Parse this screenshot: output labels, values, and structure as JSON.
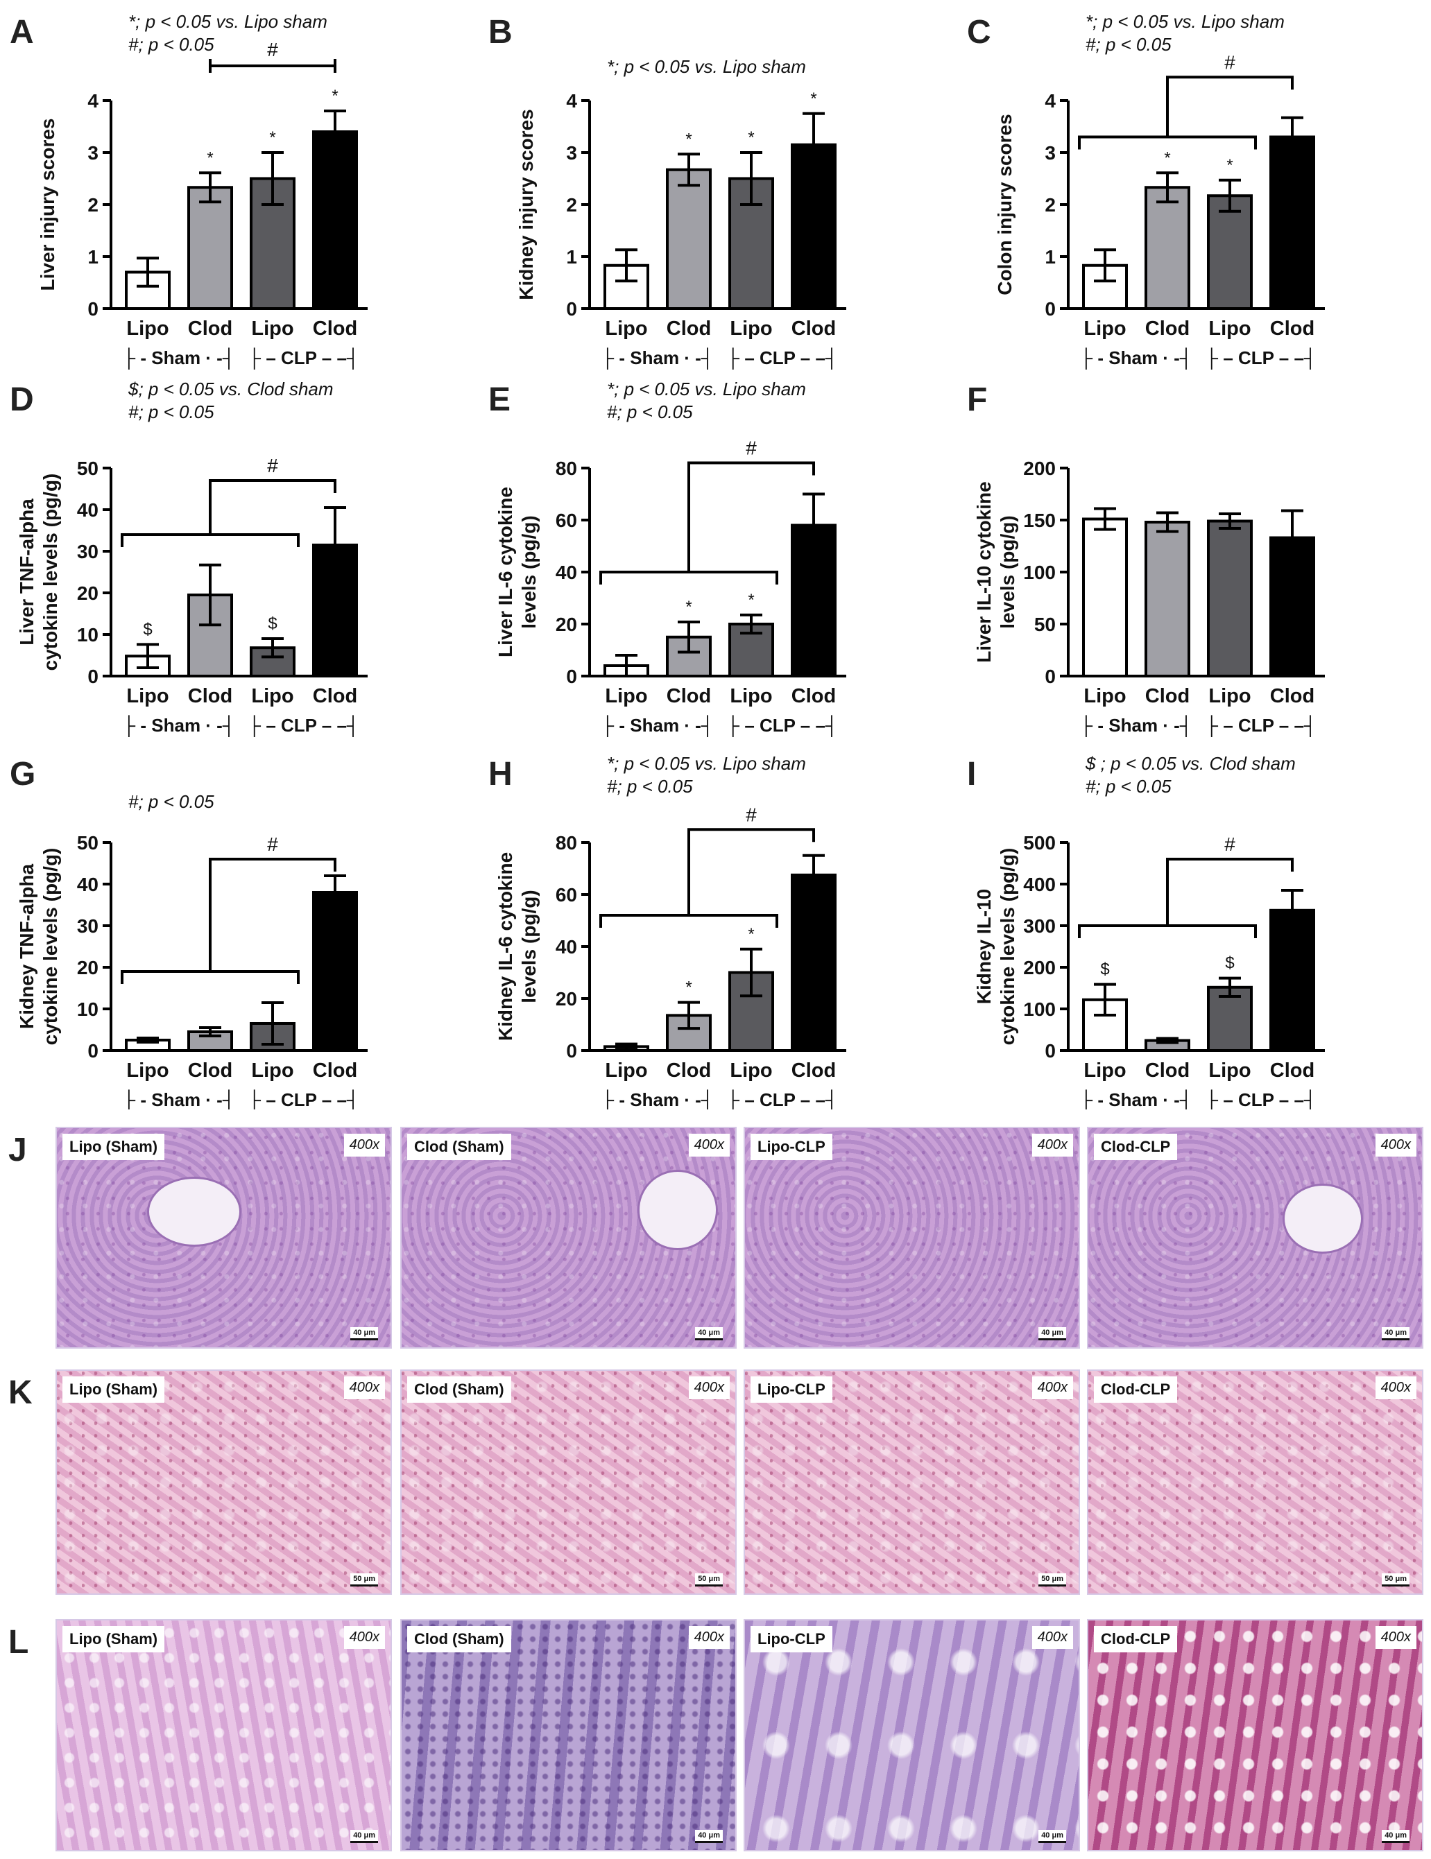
{
  "chart_data": [
    {
      "panel": "A",
      "type": "bar",
      "ylabel": "Liver injury scores",
      "ylim": [
        0,
        4
      ],
      "yticks": [
        "0",
        "1",
        "2",
        "3",
        "4"
      ],
      "categories": [
        "Lipo",
        "Clod",
        "Lipo",
        "Clod"
      ],
      "values": [
        0.7,
        2.33,
        2.5,
        3.4
      ],
      "errors": [
        0.27,
        0.28,
        0.5,
        0.4
      ],
      "fills": [
        "#ffffff",
        "#a0a0a6",
        "#5a5a5e",
        "#000000"
      ],
      "marks": [
        "",
        "*",
        "*",
        "*"
      ],
      "groups": [
        "├ - Sham · -┤",
        "├ –  CLP – –┤"
      ],
      "notes": [
        "*; p < 0.05 vs. Lipo sham",
        "#; p < 0.05"
      ],
      "brackets": [
        {
          "mark": "#",
          "style": "line",
          "from": 1,
          "to": 3
        }
      ]
    },
    {
      "panel": "B",
      "type": "bar",
      "ylabel": "Kidney injury scores",
      "ylim": [
        0,
        4
      ],
      "yticks": [
        "0",
        "1",
        "2",
        "3",
        "4"
      ],
      "categories": [
        "Lipo",
        "Clod",
        "Lipo",
        "Clod"
      ],
      "values": [
        0.83,
        2.67,
        2.5,
        3.15
      ],
      "errors": [
        0.3,
        0.3,
        0.5,
        0.6
      ],
      "fills": [
        "#ffffff",
        "#a0a0a6",
        "#5a5a5e",
        "#000000"
      ],
      "marks": [
        "",
        "*",
        "*",
        "*"
      ],
      "groups": [
        "├ - Sham · -┤",
        "├ –  CLP – –┤"
      ],
      "notes": [
        "*; p < 0.05 vs. Lipo sham"
      ],
      "brackets": []
    },
    {
      "panel": "C",
      "type": "bar",
      "ylabel": "Colon injury scores",
      "ylim": [
        0,
        4
      ],
      "yticks": [
        "0",
        "1",
        "2",
        "3",
        "4"
      ],
      "categories": [
        "Lipo",
        "Clod",
        "Lipo",
        "Clod"
      ],
      "values": [
        0.83,
        2.33,
        2.17,
        3.3
      ],
      "errors": [
        0.3,
        0.28,
        0.3,
        0.37
      ],
      "fills": [
        "#ffffff",
        "#a0a0a6",
        "#5a5a5e",
        "#000000"
      ],
      "marks": [
        "",
        "*",
        "*",
        ""
      ],
      "groups": [
        "├ - Sham · -┤",
        "├ –  CLP – –┤"
      ],
      "notes": [
        "*; p < 0.05 vs. Lipo sham",
        "#; p < 0.05"
      ],
      "brackets": [
        {
          "mark": "#",
          "style": "tree",
          "group_from": 0,
          "group_to": 2,
          "target": 3,
          "level": 3.3,
          "top": 4.45
        }
      ]
    },
    {
      "panel": "D",
      "type": "bar",
      "ylabel": "Liver TNF-alpha\ncytokine levels (pg/g)",
      "ylim": [
        0,
        50
      ],
      "yticks": [
        "0",
        "10",
        "20",
        "30",
        "40",
        "50"
      ],
      "categories": [
        "Lipo",
        "Clod",
        "Lipo",
        "Clod"
      ],
      "values": [
        4.8,
        19.5,
        6.8,
        31.5
      ],
      "errors": [
        2.8,
        7.2,
        2.2,
        9.0
      ],
      "fills": [
        "#ffffff",
        "#a0a0a6",
        "#5a5a5e",
        "#000000"
      ],
      "marks": [
        "$",
        "",
        "$",
        ""
      ],
      "groups": [
        "├ - Sham · -┤",
        "├ –  CLP – –┤"
      ],
      "notes": [
        "$; p < 0.05 vs. Clod sham",
        "#; p < 0.05"
      ],
      "brackets": [
        {
          "mark": "#",
          "style": "tree",
          "group_from": 0,
          "group_to": 2,
          "target": 3,
          "level": 34,
          "top": 47
        }
      ]
    },
    {
      "panel": "E",
      "type": "bar",
      "ylabel": "Liver IL-6 cytokine\nlevels (pg/g)",
      "ylim": [
        0,
        80
      ],
      "yticks": [
        "0",
        "20",
        "40",
        "60",
        "80"
      ],
      "categories": [
        "Lipo",
        "Clod",
        "Lipo",
        "Clod"
      ],
      "values": [
        4.0,
        15.0,
        20.0,
        58.0
      ],
      "errors": [
        4.0,
        5.8,
        3.5,
        12.0
      ],
      "fills": [
        "#ffffff",
        "#a0a0a6",
        "#5a5a5e",
        "#000000"
      ],
      "marks": [
        "",
        "*",
        "*",
        ""
      ],
      "groups": [
        "├ - Sham · -┤",
        "├ –  CLP – –┤"
      ],
      "notes": [
        "*; p < 0.05 vs. Lipo sham",
        "#; p < 0.05"
      ],
      "brackets": [
        {
          "mark": "#",
          "style": "tree",
          "group_from": 0,
          "group_to": 2,
          "target": 3,
          "level": 40,
          "top": 82
        }
      ]
    },
    {
      "panel": "F",
      "type": "bar",
      "ylabel": "Liver IL-10 cytokine\nlevels (pg/g)",
      "ylim": [
        0,
        200
      ],
      "yticks": [
        "0",
        "50",
        "100",
        "150",
        "200"
      ],
      "categories": [
        "Lipo",
        "Clod",
        "Lipo",
        "Clod"
      ],
      "values": [
        151,
        148,
        149,
        133
      ],
      "errors": [
        10,
        9,
        7,
        26
      ],
      "fills": [
        "#ffffff",
        "#a0a0a6",
        "#5a5a5e",
        "#000000"
      ],
      "marks": [
        "",
        "",
        "",
        ""
      ],
      "groups": [
        "├ - Sham · -┤",
        "├ –  CLP – –┤"
      ],
      "notes": [],
      "brackets": []
    },
    {
      "panel": "G",
      "type": "bar",
      "ylabel": "Kidney TNF-alpha\ncytokine levels (pg/g)",
      "ylim": [
        0,
        50
      ],
      "yticks": [
        "0",
        "10",
        "20",
        "30",
        "40",
        "50"
      ],
      "categories": [
        "Lipo",
        "Clod",
        "Lipo",
        "Clod"
      ],
      "values": [
        2.5,
        4.5,
        6.5,
        38.0
      ],
      "errors": [
        0.5,
        1.0,
        5.0,
        4.0
      ],
      "fills": [
        "#ffffff",
        "#a0a0a6",
        "#5a5a5e",
        "#000000"
      ],
      "marks": [
        "",
        "",
        "",
        ""
      ],
      "groups": [
        "├ - Sham · -┤",
        "├ –  CLP – –┤"
      ],
      "notes": [
        "#; p < 0.05"
      ],
      "brackets": [
        {
          "mark": "#",
          "style": "tree",
          "group_from": 0,
          "group_to": 2,
          "target": 3,
          "level": 19,
          "top": 46
        }
      ]
    },
    {
      "panel": "H",
      "type": "bar",
      "ylabel": "Kidney IL-6 cytokine\nlevels (pg/g)",
      "ylim": [
        0,
        80
      ],
      "yticks": [
        "0",
        "20",
        "40",
        "60",
        "80"
      ],
      "categories": [
        "Lipo",
        "Clod",
        "Lipo",
        "Clod"
      ],
      "values": [
        1.5,
        13.5,
        30.0,
        67.5
      ],
      "errors": [
        1.0,
        5.0,
        9.0,
        7.5
      ],
      "fills": [
        "#ffffff",
        "#a0a0a6",
        "#5a5a5e",
        "#000000"
      ],
      "marks": [
        "",
        "*",
        "*",
        ""
      ],
      "groups": [
        "├ - Sham · -┤",
        "├ –  CLP – –┤"
      ],
      "notes": [
        "*; p < 0.05 vs. Lipo sham",
        "#; p < 0.05"
      ],
      "brackets": [
        {
          "mark": "#",
          "style": "tree",
          "group_from": 0,
          "group_to": 2,
          "target": 3,
          "level": 52,
          "top": 85
        }
      ]
    },
    {
      "panel": "I",
      "type": "bar",
      "ylabel": "Kidney IL-10\ncytokine levels (pg/g)",
      "ylim": [
        0,
        500
      ],
      "yticks": [
        "0",
        "100",
        "200",
        "300",
        "400",
        "500"
      ],
      "categories": [
        "Lipo",
        "Clod",
        "Lipo",
        "Clod"
      ],
      "values": [
        122,
        24,
        152,
        337
      ],
      "errors": [
        37,
        5,
        22,
        48
      ],
      "fills": [
        "#ffffff",
        "#a0a0a6",
        "#5a5a5e",
        "#000000"
      ],
      "marks": [
        "$",
        "",
        "$",
        ""
      ],
      "groups": [
        "├ - Sham · -┤",
        "├ –  CLP – –┤"
      ],
      "notes": [
        "$ ; p < 0.05 vs. Clod sham",
        "#; p < 0.05"
      ],
      "brackets": [
        {
          "mark": "#",
          "style": "tree",
          "group_from": 0,
          "group_to": 2,
          "target": 3,
          "level": 300,
          "top": 460
        }
      ]
    }
  ],
  "micrographs": [
    {
      "row": "J",
      "texture": "liver",
      "panels": [
        {
          "label": "Lipo (Sham)",
          "mag": "400x",
          "scale": "40 μm"
        },
        {
          "label": "Clod (Sham)",
          "mag": "400x",
          "scale": "40 μm"
        },
        {
          "label": "Lipo-CLP",
          "mag": "400x",
          "scale": "40 μm"
        },
        {
          "label": "Clod-CLP",
          "mag": "400x",
          "scale": "40 μm"
        }
      ]
    },
    {
      "row": "K",
      "texture": "kidney",
      "panels": [
        {
          "label": "Lipo (Sham)",
          "mag": "400x",
          "scale": "50 μm"
        },
        {
          "label": "Clod (Sham)",
          "mag": "400x",
          "scale": "50 μm"
        },
        {
          "label": "Lipo-CLP",
          "mag": "400x",
          "scale": "50 μm"
        },
        {
          "label": "Clod-CLP",
          "mag": "400x",
          "scale": "50 μm"
        }
      ]
    },
    {
      "row": "L",
      "texture": "colon",
      "panels": [
        {
          "label": "Lipo (Sham)",
          "mag": "400x",
          "scale": "40 μm"
        },
        {
          "label": "Clod (Sham)",
          "mag": "400x",
          "scale": "40 μm"
        },
        {
          "label": "Lipo-CLP",
          "mag": "400x",
          "scale": "40 μm"
        },
        {
          "label": "Clod-CLP",
          "mag": "400x",
          "scale": "40 μm"
        }
      ]
    }
  ]
}
